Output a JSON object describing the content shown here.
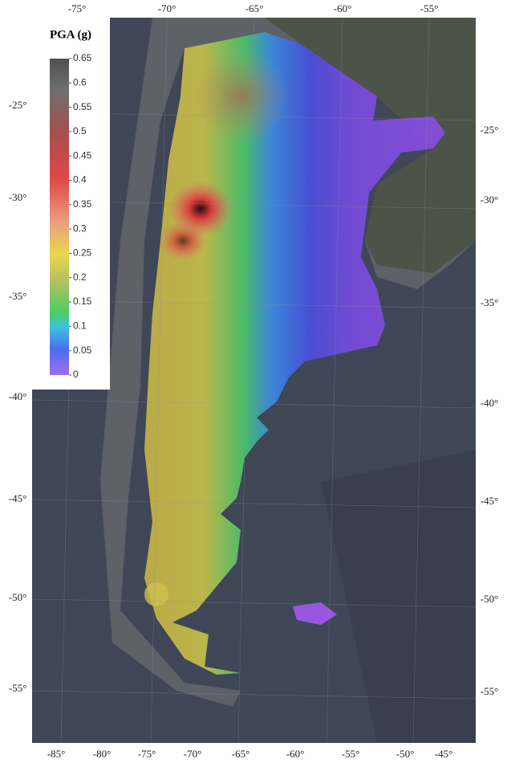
{
  "legend": {
    "title": "PGA (g)",
    "ticks": [
      0.65,
      0.6,
      0.55,
      0.5,
      0.45,
      0.4,
      0.35,
      0.3,
      0.25,
      0.2,
      0.15,
      0.1,
      0.05,
      0
    ]
  },
  "graticule": {
    "top": [
      "-75°",
      "-70°",
      "-65°",
      "-60°",
      "-55°"
    ],
    "left": [
      "-25°",
      "-30°",
      "-35°",
      "-40°",
      "-45°",
      "-50°",
      "-55°"
    ],
    "right": [
      "-25°",
      "-30°",
      "-35°",
      "-40°",
      "-45°",
      "-50°",
      "-55°"
    ],
    "bottom": [
      "-85°",
      "-80°",
      "-75°",
      "-70°",
      "-65°",
      "-60°",
      "-55°",
      "-50°",
      "-45°"
    ]
  }
}
